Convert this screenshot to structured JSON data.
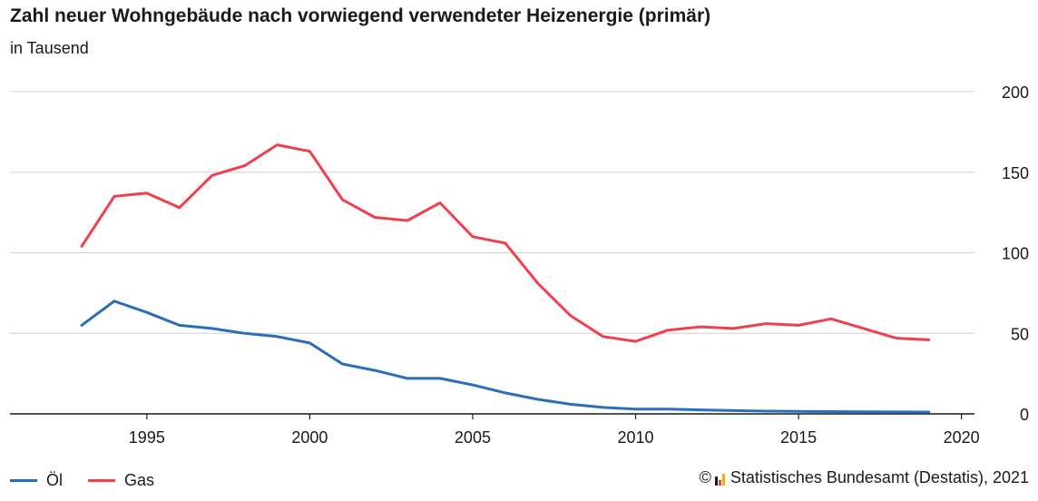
{
  "chart_data": {
    "type": "line",
    "title": "Zahl neuer Wohngebäude nach vorwiegend verwendeter Heizenergie (primär)",
    "subtitle": "in Tausend",
    "x": [
      1993,
      1994,
      1995,
      1996,
      1997,
      1998,
      1999,
      2000,
      2001,
      2002,
      2003,
      2004,
      2005,
      2006,
      2007,
      2008,
      2009,
      2010,
      2011,
      2012,
      2013,
      2014,
      2015,
      2016,
      2017,
      2018,
      2019
    ],
    "series": [
      {
        "name": "Öl",
        "color": "#2a6ebb",
        "values": [
          55,
          70,
          63,
          55,
          53,
          50,
          48,
          44,
          31,
          27,
          22,
          22,
          18,
          13,
          9,
          6,
          4,
          3,
          3,
          2.5,
          2,
          1.7,
          1.5,
          1.4,
          1.3,
          1.2,
          1.1
        ]
      },
      {
        "name": "Gas",
        "color": "#f0404e",
        "values": [
          104,
          135,
          137,
          128,
          148,
          154,
          167,
          163,
          133,
          122,
          120,
          131,
          110,
          106,
          81,
          61,
          48,
          45,
          52,
          54,
          53,
          56,
          55,
          59,
          53,
          47,
          46
        ]
      }
    ],
    "xticks": [
      1995,
      2000,
      2005,
      2010,
      2015,
      2020
    ],
    "yticks": [
      0,
      50,
      100,
      150,
      200
    ],
    "xlim": [
      1990.8,
      2020.4
    ],
    "ylim": [
      0,
      200
    ],
    "grid": true,
    "legend_position": "bottom-left"
  },
  "source": {
    "copyright": "©",
    "text": "Statistisches Bundesamt (Destatis), 2021"
  },
  "colors": {
    "grid": "#d0d0d0",
    "axis": "#1a1a1a",
    "logo": [
      "#1a1a1a",
      "#f0404e",
      "#f0b400"
    ]
  }
}
